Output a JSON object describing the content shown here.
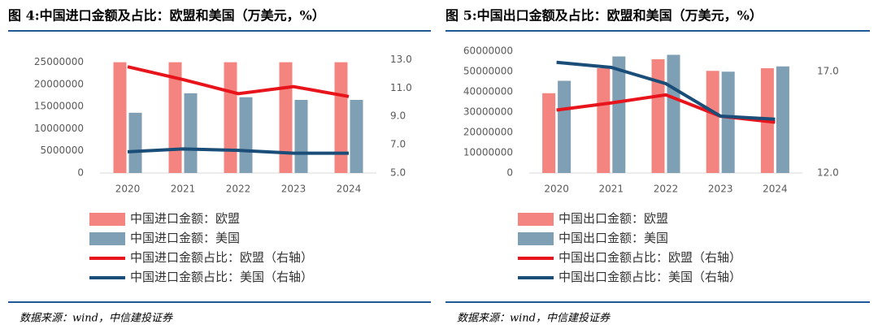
{
  "chart_data": [
    {
      "type": "bar",
      "title": "图 4:中国进口金额及占比：欧盟和美国（万美元，%）",
      "categories": [
        "2020",
        "2021",
        "2022",
        "2023",
        "2024"
      ],
      "series": [
        {
          "name": "中国进口金额：欧盟",
          "type": "bar",
          "color": "#f4847f",
          "values": [
            25000000,
            25000000,
            25000000,
            25000000,
            25000000
          ]
        },
        {
          "name": "中国进口金额：美国",
          "type": "bar",
          "color": "#7f9fb5",
          "values": [
            13600000,
            18000000,
            17100000,
            16500000,
            16500000
          ]
        },
        {
          "name": "中国进口金额占比：欧盟（右轴）",
          "type": "line",
          "axis": "y2",
          "color": "#e8141c",
          "values": [
            12.5,
            11.6,
            10.6,
            11.1,
            10.4
          ]
        },
        {
          "name": "中国进口金额占比：美国（右轴）",
          "type": "line",
          "axis": "y2",
          "color": "#1a4e78",
          "values": [
            6.5,
            6.7,
            6.6,
            6.4,
            6.4
          ]
        }
      ],
      "ylim": [
        0,
        27500000
      ],
      "yticks": [
        0,
        5000000,
        10000000,
        15000000,
        20000000,
        25000000
      ],
      "y2lim": [
        5,
        13.6
      ],
      "y2ticks": [
        {
          "value": 5,
          "label": "5.0"
        },
        {
          "value": 7,
          "label": "7.0"
        },
        {
          "value": 9,
          "label": "9.0"
        },
        {
          "value": 11,
          "label": "11.0"
        },
        {
          "value": 13,
          "label": "13.0"
        }
      ],
      "source": "数据来源：wind，中信建投证券"
    },
    {
      "type": "bar",
      "title": "图 5:中国出口金额及占比：欧盟和美国（万美元，%）",
      "categories": [
        "2020",
        "2021",
        "2022",
        "2023",
        "2024"
      ],
      "series": [
        {
          "name": "中国出口金额：欧盟",
          "type": "bar",
          "color": "#f4847f",
          "values": [
            39300000,
            51600000,
            56000000,
            50300000,
            51600000
          ]
        },
        {
          "name": "中国出口金额：美国",
          "type": "bar",
          "color": "#7f9fb5",
          "values": [
            45400000,
            57400000,
            58200000,
            49900000,
            52500000
          ]
        },
        {
          "name": "中国出口金额占比：欧盟（右轴）",
          "type": "line",
          "axis": "y2",
          "color": "#e8141c",
          "values": [
            15.1,
            15.45,
            15.85,
            14.8,
            14.5
          ]
        },
        {
          "name": "中国出口金额占比：美国（右轴）",
          "type": "line",
          "axis": "y2",
          "color": "#1a4e78",
          "values": [
            17.45,
            17.2,
            16.4,
            14.8,
            14.65
          ]
        }
      ],
      "ylim": [
        0,
        60000000
      ],
      "yticks": [
        0,
        10000000,
        20000000,
        30000000,
        40000000,
        50000000,
        60000000
      ],
      "y2lim": [
        12,
        18
      ],
      "y2ticks": [
        {
          "value": 12,
          "label": "12.0"
        },
        {
          "value": 17,
          "label": "17.0"
        }
      ],
      "source": "数据来源：wind，中信建投证券"
    }
  ]
}
